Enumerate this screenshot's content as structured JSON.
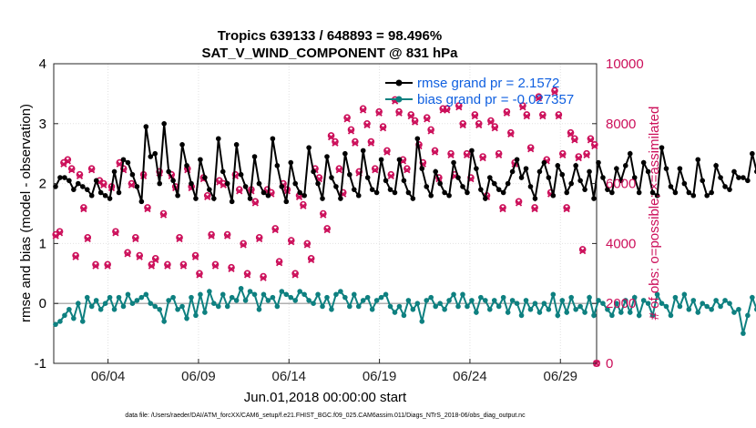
{
  "colors": {
    "rmse": "#000000",
    "bias": "#0e8080",
    "obs": "#cc0f5a",
    "legend_text": "#1060e0",
    "axis": "#262626"
  },
  "chart_data": {
    "type": "line",
    "title_line1": "Tropics 639133 / 648893 = 98.496%",
    "title_line2": "SAT_V_WIND_COMPONENT @ 831 hPa",
    "ylabel_left": "rmse and bias (model - observation)",
    "ylabel_right": "# of obs: o=possible; ×=assimilated",
    "xlabel": "Jun.01,2018 00:00:00 start",
    "footnote": "data file: /Users/raeder/DAI/ATM_forcXX/CAM6_setup/f.e21.FHIST_BGC.f09_025.CAM6assim.011/Diags_NTrS_2018-06/obs_diag_output.nc",
    "xlim": [
      0,
      30
    ],
    "ylim_left": [
      -1,
      4
    ],
    "ylim_right": [
      0,
      10000
    ],
    "yticks_left": [
      "4",
      "3",
      "2",
      "1",
      "0",
      "-1"
    ],
    "yticks_right": [
      "10000",
      "8000",
      "6000",
      "4000",
      "2000",
      "0"
    ],
    "xticks": [
      {
        "day": 3,
        "label": "06/04"
      },
      {
        "day": 8,
        "label": "06/09"
      },
      {
        "day": 13,
        "label": "06/14"
      },
      {
        "day": 18,
        "label": "06/19"
      },
      {
        "day": 23,
        "label": "06/24"
      },
      {
        "day": 28,
        "label": "06/29"
      }
    ],
    "legend": [
      {
        "label": "rmse grand pr = 2.1572",
        "series": "rmse"
      },
      {
        "label": "bias grand pr = -0.027357",
        "series": "bias"
      }
    ],
    "x_start_day": 0.1,
    "x_step_day": 0.25,
    "series": [
      {
        "name": "rmse",
        "values": [
          1.95,
          2.1,
          2.1,
          2.05,
          1.9,
          2.0,
          1.95,
          1.9,
          1.8,
          2.05,
          1.85,
          1.8,
          1.75,
          2.2,
          1.85,
          2.4,
          2.35,
          2.15,
          1.95,
          1.7,
          2.95,
          2.45,
          2.5,
          2.0,
          3.0,
          2.2,
          2.05,
          1.8,
          2.65,
          2.3,
          2.0,
          1.75,
          2.4,
          2.1,
          1.9,
          1.75,
          2.75,
          2.2,
          2.0,
          1.7,
          2.65,
          2.15,
          1.95,
          1.75,
          2.45,
          2.0,
          1.85,
          1.8,
          2.75,
          2.3,
          1.95,
          1.7,
          2.35,
          2.0,
          1.85,
          1.8,
          2.6,
          2.2,
          2.0,
          1.75,
          2.45,
          2.1,
          1.95,
          1.75,
          2.5,
          2.15,
          1.9,
          1.8,
          2.55,
          2.1,
          1.9,
          1.85,
          2.4,
          2.05,
          1.9,
          1.85,
          2.4,
          2.05,
          1.85,
          1.75,
          2.75,
          2.25,
          1.95,
          1.8,
          2.2,
          2.0,
          1.85,
          1.8,
          2.35,
          2.1,
          1.95,
          1.85,
          2.55,
          2.25,
          1.9,
          1.75,
          2.1,
          2.0,
          1.9,
          1.85,
          2.0,
          2.2,
          2.4,
          2.1,
          2.25,
          1.95,
          1.75,
          2.2,
          2.35,
          2.1,
          1.8,
          2.3,
          2.15,
          1.85,
          2.0,
          2.3,
          2.05,
          1.9,
          2.2,
          1.75,
          2.35,
          2.1,
          1.9,
          1.85,
          2.25,
          2.05,
          2.3,
          2.5,
          2.1,
          1.85,
          2.35,
          2.2,
          1.85,
          1.8,
          2.6,
          2.25,
          1.95,
          1.85,
          2.25,
          2.0,
          1.85,
          1.8,
          2.4,
          2.05,
          1.8,
          1.85,
          2.3,
          2.1,
          1.95,
          1.9,
          2.2,
          2.1,
          2.1,
          2.05,
          2.5,
          2.2,
          2.05
        ]
      },
      {
        "name": "bias",
        "values": [
          -0.35,
          -0.3,
          -0.2,
          -0.1,
          -0.25,
          0.0,
          -0.3,
          0.1,
          -0.05,
          0.05,
          -0.1,
          0.0,
          0.1,
          -0.1,
          0.1,
          -0.05,
          0.15,
          0.0,
          0.05,
          0.1,
          0.15,
          0.0,
          -0.05,
          -0.1,
          -0.3,
          0.05,
          0.1,
          -0.1,
          -0.05,
          -0.25,
          0.1,
          -0.2,
          0.15,
          -0.15,
          0.2,
          0.0,
          -0.05,
          0.15,
          -0.05,
          0.1,
          0.05,
          0.25,
          0.05,
          0.2,
          0.15,
          -0.1,
          0.15,
          0.05,
          0.1,
          -0.05,
          0.2,
          0.15,
          0.1,
          0.05,
          0.2,
          0.15,
          0.05,
          0.0,
          0.15,
          -0.05,
          0.1,
          -0.1,
          0.15,
          0.2,
          0.1,
          -0.05,
          0.15,
          -0.05,
          0.05,
          0.1,
          -0.1,
          0.05,
          0.1,
          0.15,
          -0.05,
          -0.15,
          -0.05,
          -0.2,
          0.05,
          -0.1,
          0.0,
          -0.3,
          0.05,
          0.1,
          -0.05,
          0.0,
          -0.1,
          0.05,
          0.15,
          -0.05,
          0.15,
          -0.05,
          0.05,
          -0.15,
          0.1,
          0.05,
          -0.1,
          0.05,
          -0.05,
          0.1,
          -0.15,
          0.05,
          0.0,
          -0.2,
          0.05,
          -0.1,
          0.0,
          -0.15,
          0.0,
          -0.1,
          0.15,
          -0.2,
          0.05,
          -0.15,
          0.1,
          -0.1,
          -0.05,
          -0.15,
          0.1,
          -0.2,
          0.05,
          0.0,
          -0.1,
          -0.2,
          0.0,
          -0.15,
          0.05,
          -0.15,
          0.1,
          -0.2,
          0.05,
          0.0,
          -0.2,
          0.15,
          0.0,
          -0.05,
          -0.2,
          0.1,
          -0.05,
          0.15,
          -0.1,
          0.05,
          -0.15,
          0.0,
          -0.05,
          -0.1,
          0.05,
          -0.05,
          0.05,
          0.0,
          -0.15,
          -0.1,
          -0.5,
          -0.2,
          0.1,
          -0.1
        ]
      },
      {
        "name": "obs_possible",
        "values": [
          4300,
          4400,
          6700,
          6800,
          6500,
          3600,
          6300,
          5200,
          4200,
          6500,
          3300,
          6100,
          6000,
          3300,
          5900,
          4400,
          6700,
          6500,
          3700,
          6000,
          4200,
          3600,
          6300,
          5200,
          3300,
          3500,
          6400,
          5000,
          3300,
          6300,
          5900,
          4200,
          3300,
          6500,
          5900,
          3600,
          3000,
          6200,
          5600,
          4300,
          3300,
          6100,
          6000,
          4300,
          3200,
          6300,
          5800,
          4000,
          3000,
          5800,
          5400,
          4200,
          2900,
          5800,
          5700,
          4500,
          3400,
          6000,
          5800,
          4100,
          3000,
          5600,
          5300,
          4000,
          3500,
          6500,
          6200,
          5000,
          4500,
          7600,
          7400,
          6500,
          5700,
          8200,
          7800,
          7400,
          6400,
          8500,
          8000,
          7400,
          6500,
          8400,
          7900,
          7100,
          6300,
          8800,
          8400,
          6800,
          6500,
          8300,
          8100,
          7300,
          6700,
          8200,
          7800,
          7100,
          6200,
          8500,
          8500,
          7000,
          6300,
          8600,
          8000,
          7000,
          6200,
          8300,
          8000,
          6900,
          5600,
          8100,
          7900,
          7000,
          5200,
          8400,
          7700,
          6700,
          5400,
          8600,
          8300,
          7200,
          5200,
          8900,
          8300,
          6800,
          5700,
          9100,
          8300,
          7000,
          5200,
          7700,
          7500,
          6900,
          3800,
          7000,
          7500,
          7300
        ]
      },
      {
        "name": "obs_assim",
        "values": [
          4250,
          4350,
          6650,
          6750,
          6450,
          3550,
          6250,
          5150,
          4150,
          6450,
          3250,
          6050,
          5950,
          3250,
          5850,
          4350,
          6650,
          6450,
          3650,
          5950,
          4150,
          3550,
          6250,
          5150,
          3250,
          3450,
          6350,
          4950,
          3250,
          6250,
          5850,
          4150,
          3250,
          6450,
          5850,
          3550,
          2950,
          6150,
          5550,
          4250,
          3250,
          6050,
          5950,
          4250,
          3150,
          6250,
          5750,
          3950,
          2950,
          5750,
          5350,
          4150,
          2850,
          5750,
          5650,
          4450,
          3350,
          5950,
          5750,
          4050,
          2950,
          5550,
          5250,
          3950,
          3450,
          6450,
          6150,
          4950,
          4450,
          7550,
          7350,
          6450,
          5650,
          8150,
          7750,
          7350,
          6350,
          8450,
          7950,
          7350,
          6450,
          8350,
          7850,
          7050,
          6250,
          8750,
          8350,
          6750,
          6450,
          8250,
          8050,
          7250,
          6650,
          8150,
          7750,
          7050,
          6150,
          8450,
          8450,
          6950,
          6250,
          8550,
          7950,
          6950,
          6150,
          8250,
          7950,
          6850,
          5550,
          8050,
          7850,
          6950,
          5150,
          8350,
          7650,
          6650,
          5350,
          8550,
          8250,
          7150,
          5150,
          8850,
          8250,
          6750,
          5650,
          9050,
          8250,
          6950,
          5150,
          7650,
          7450,
          6850,
          3750,
          6950,
          7450,
          7250
        ]
      }
    ]
  }
}
